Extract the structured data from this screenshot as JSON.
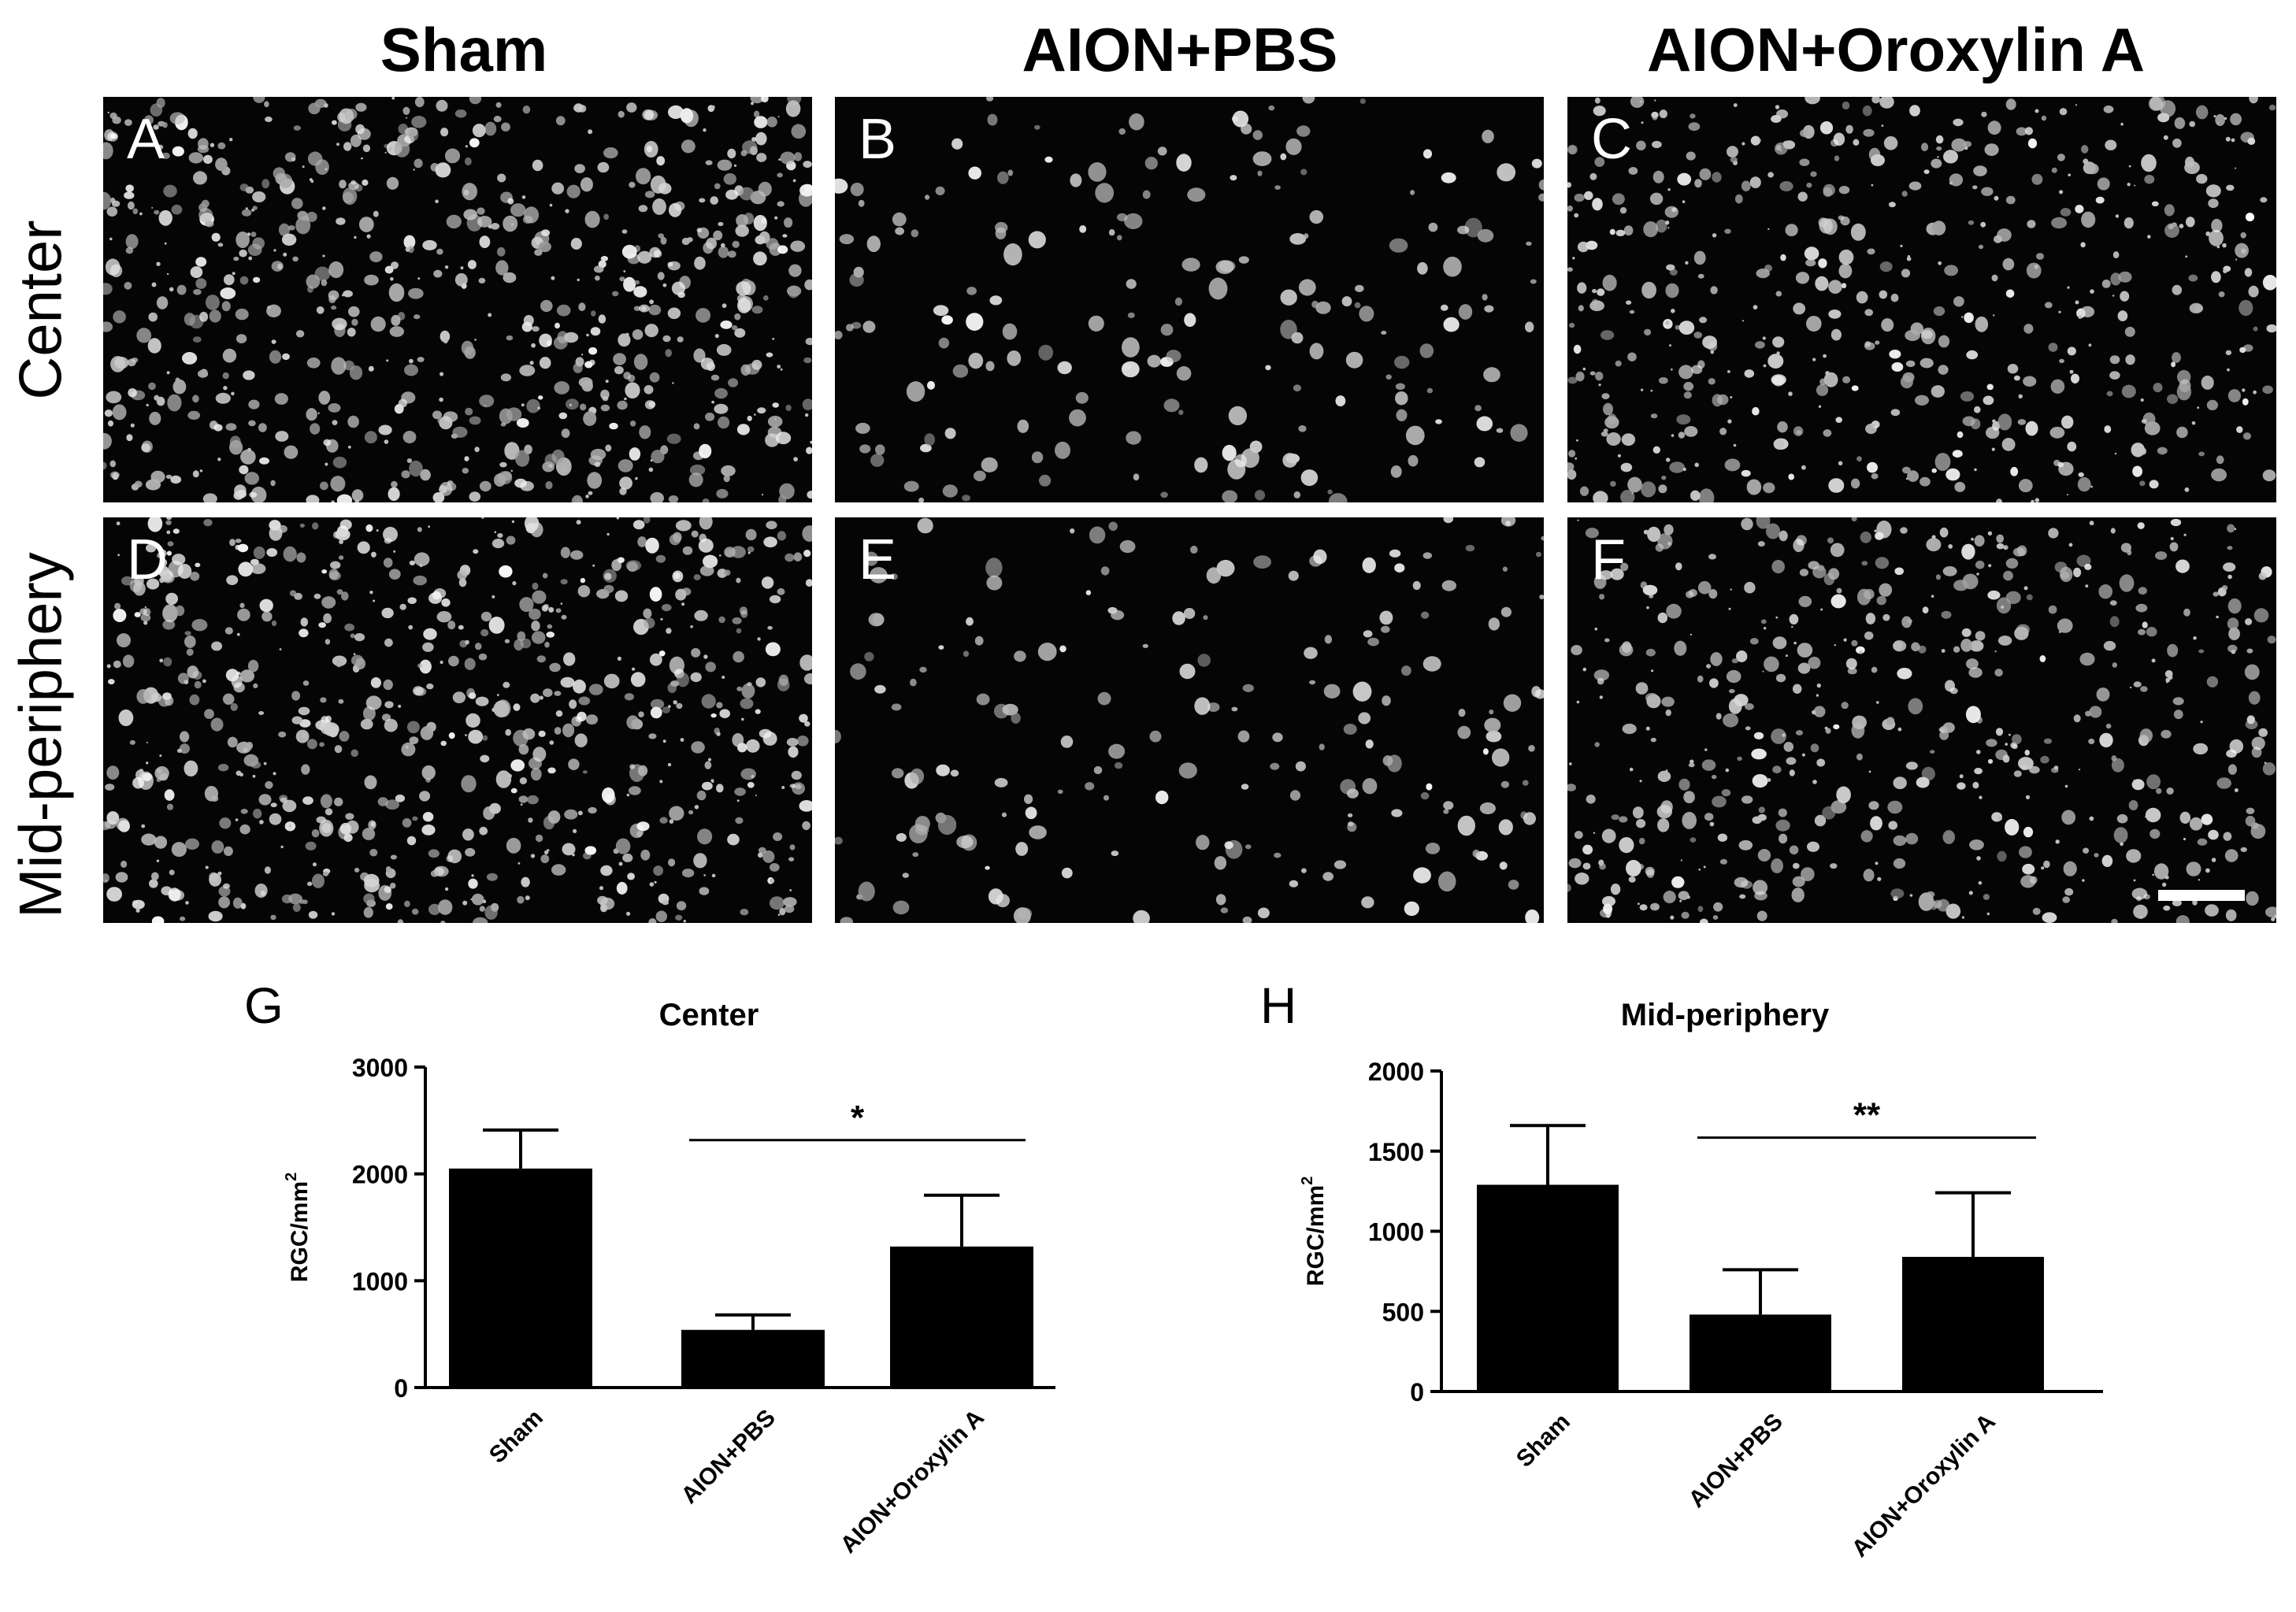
{
  "columns": [
    "Sham",
    "AION+PBS",
    "AION+Oroxylin A"
  ],
  "rows": [
    "Center",
    "Mid-periphery"
  ],
  "panels": [
    {
      "letter": "A",
      "density": "high"
    },
    {
      "letter": "B",
      "density": "low"
    },
    {
      "letter": "C",
      "density": "medium"
    },
    {
      "letter": "D",
      "density": "high"
    },
    {
      "letter": "E",
      "density": "low"
    },
    {
      "letter": "F",
      "density": "medium"
    }
  ],
  "colors": {
    "micrograph_bg": "#050505",
    "cell": "#ffffff",
    "bar": "#000000"
  },
  "chart_data": [
    {
      "letter": "G",
      "type": "bar",
      "title": "Center",
      "ylabel": "RGC/mm",
      "ylabel_sup": "2",
      "categories": [
        "Sham",
        "AION+PBS",
        "AION+Oroxylin A"
      ],
      "values": [
        2050,
        540,
        1320
      ],
      "errors": [
        360,
        140,
        480
      ],
      "ylim": [
        0,
        3000
      ],
      "yticks": [
        0,
        1000,
        2000,
        3000
      ],
      "significance": {
        "from": 1,
        "to": 2,
        "label": "*"
      }
    },
    {
      "letter": "H",
      "type": "bar",
      "title": "Mid-periphery",
      "ylabel": "RGC/mm",
      "ylabel_sup": "2",
      "categories": [
        "Sham",
        "AION+PBS",
        "AION+Oroxylin A"
      ],
      "values": [
        1290,
        480,
        840
      ],
      "errors": [
        370,
        280,
        400
      ],
      "ylim": [
        0,
        2000
      ],
      "yticks": [
        0,
        500,
        1000,
        1500,
        2000
      ],
      "significance": {
        "from": 1,
        "to": 2,
        "label": "**"
      }
    }
  ]
}
